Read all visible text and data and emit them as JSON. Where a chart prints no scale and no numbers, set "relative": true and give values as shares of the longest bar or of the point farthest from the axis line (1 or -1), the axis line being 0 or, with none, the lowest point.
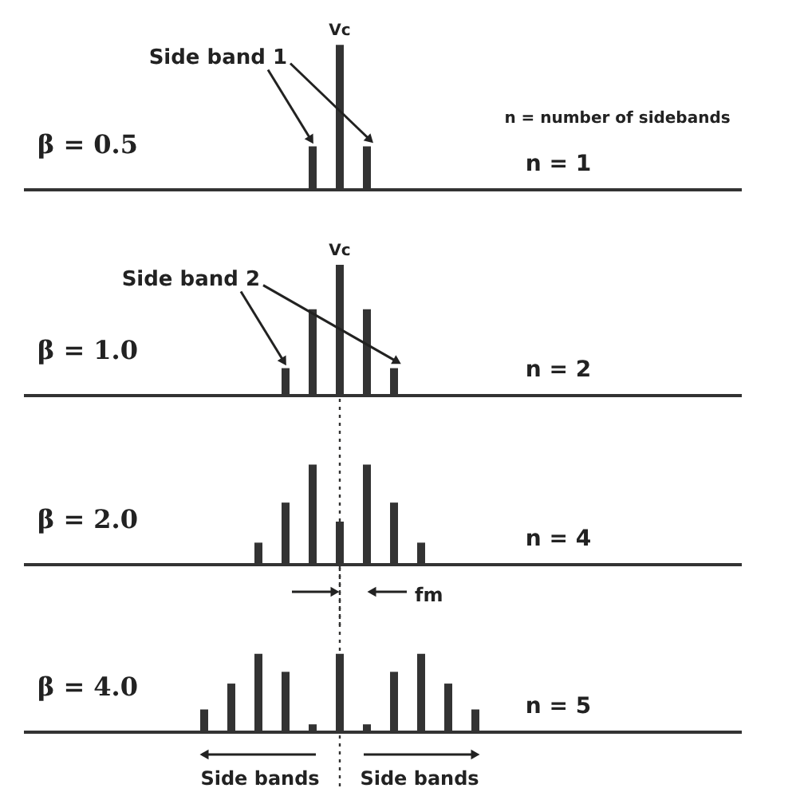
{
  "chart_data": [
    {
      "type": "bar",
      "relative": true,
      "color": "#333333",
      "categories": [
        null,
        null,
        null
      ],
      "values": [
        0.3,
        1,
        0.3
      ],
      "annotations": [
        "β = 0.5",
        "n = 1",
        "n = number of sidebands",
        "Vc",
        "Side band 1"
      ]
    },
    {
      "type": "bar",
      "relative": true,
      "color": "#333333",
      "categories": [
        null,
        null,
        null,
        null,
        null
      ],
      "values": [
        0.21,
        0.66,
        1,
        0.66,
        0.21
      ],
      "annotations": [
        "β = 1.0",
        "n = 2",
        "Vc",
        "Side band 2"
      ]
    },
    {
      "type": "bar",
      "relative": true,
      "color": "#333333",
      "categories": [
        null,
        null,
        null,
        null,
        null,
        null,
        null
      ],
      "values": [
        0.22,
        0.62,
        1,
        0.43,
        1,
        0.62,
        0.22
      ],
      "annotations": [
        "β = 2.0",
        "n = 4",
        "fm"
      ]
    },
    {
      "type": "bar",
      "relative": true,
      "color": "#333333",
      "categories": [
        null,
        null,
        null,
        null,
        null,
        null,
        null,
        null,
        null,
        null,
        null
      ],
      "values": [
        0.29,
        0.62,
        1,
        0.77,
        0.1,
        1,
        0.1,
        0.77,
        1,
        0.62,
        0.29
      ],
      "annotations": [
        "β = 4.0",
        "n = 5",
        "Side bands",
        "Side bands"
      ]
    }
  ]
}
